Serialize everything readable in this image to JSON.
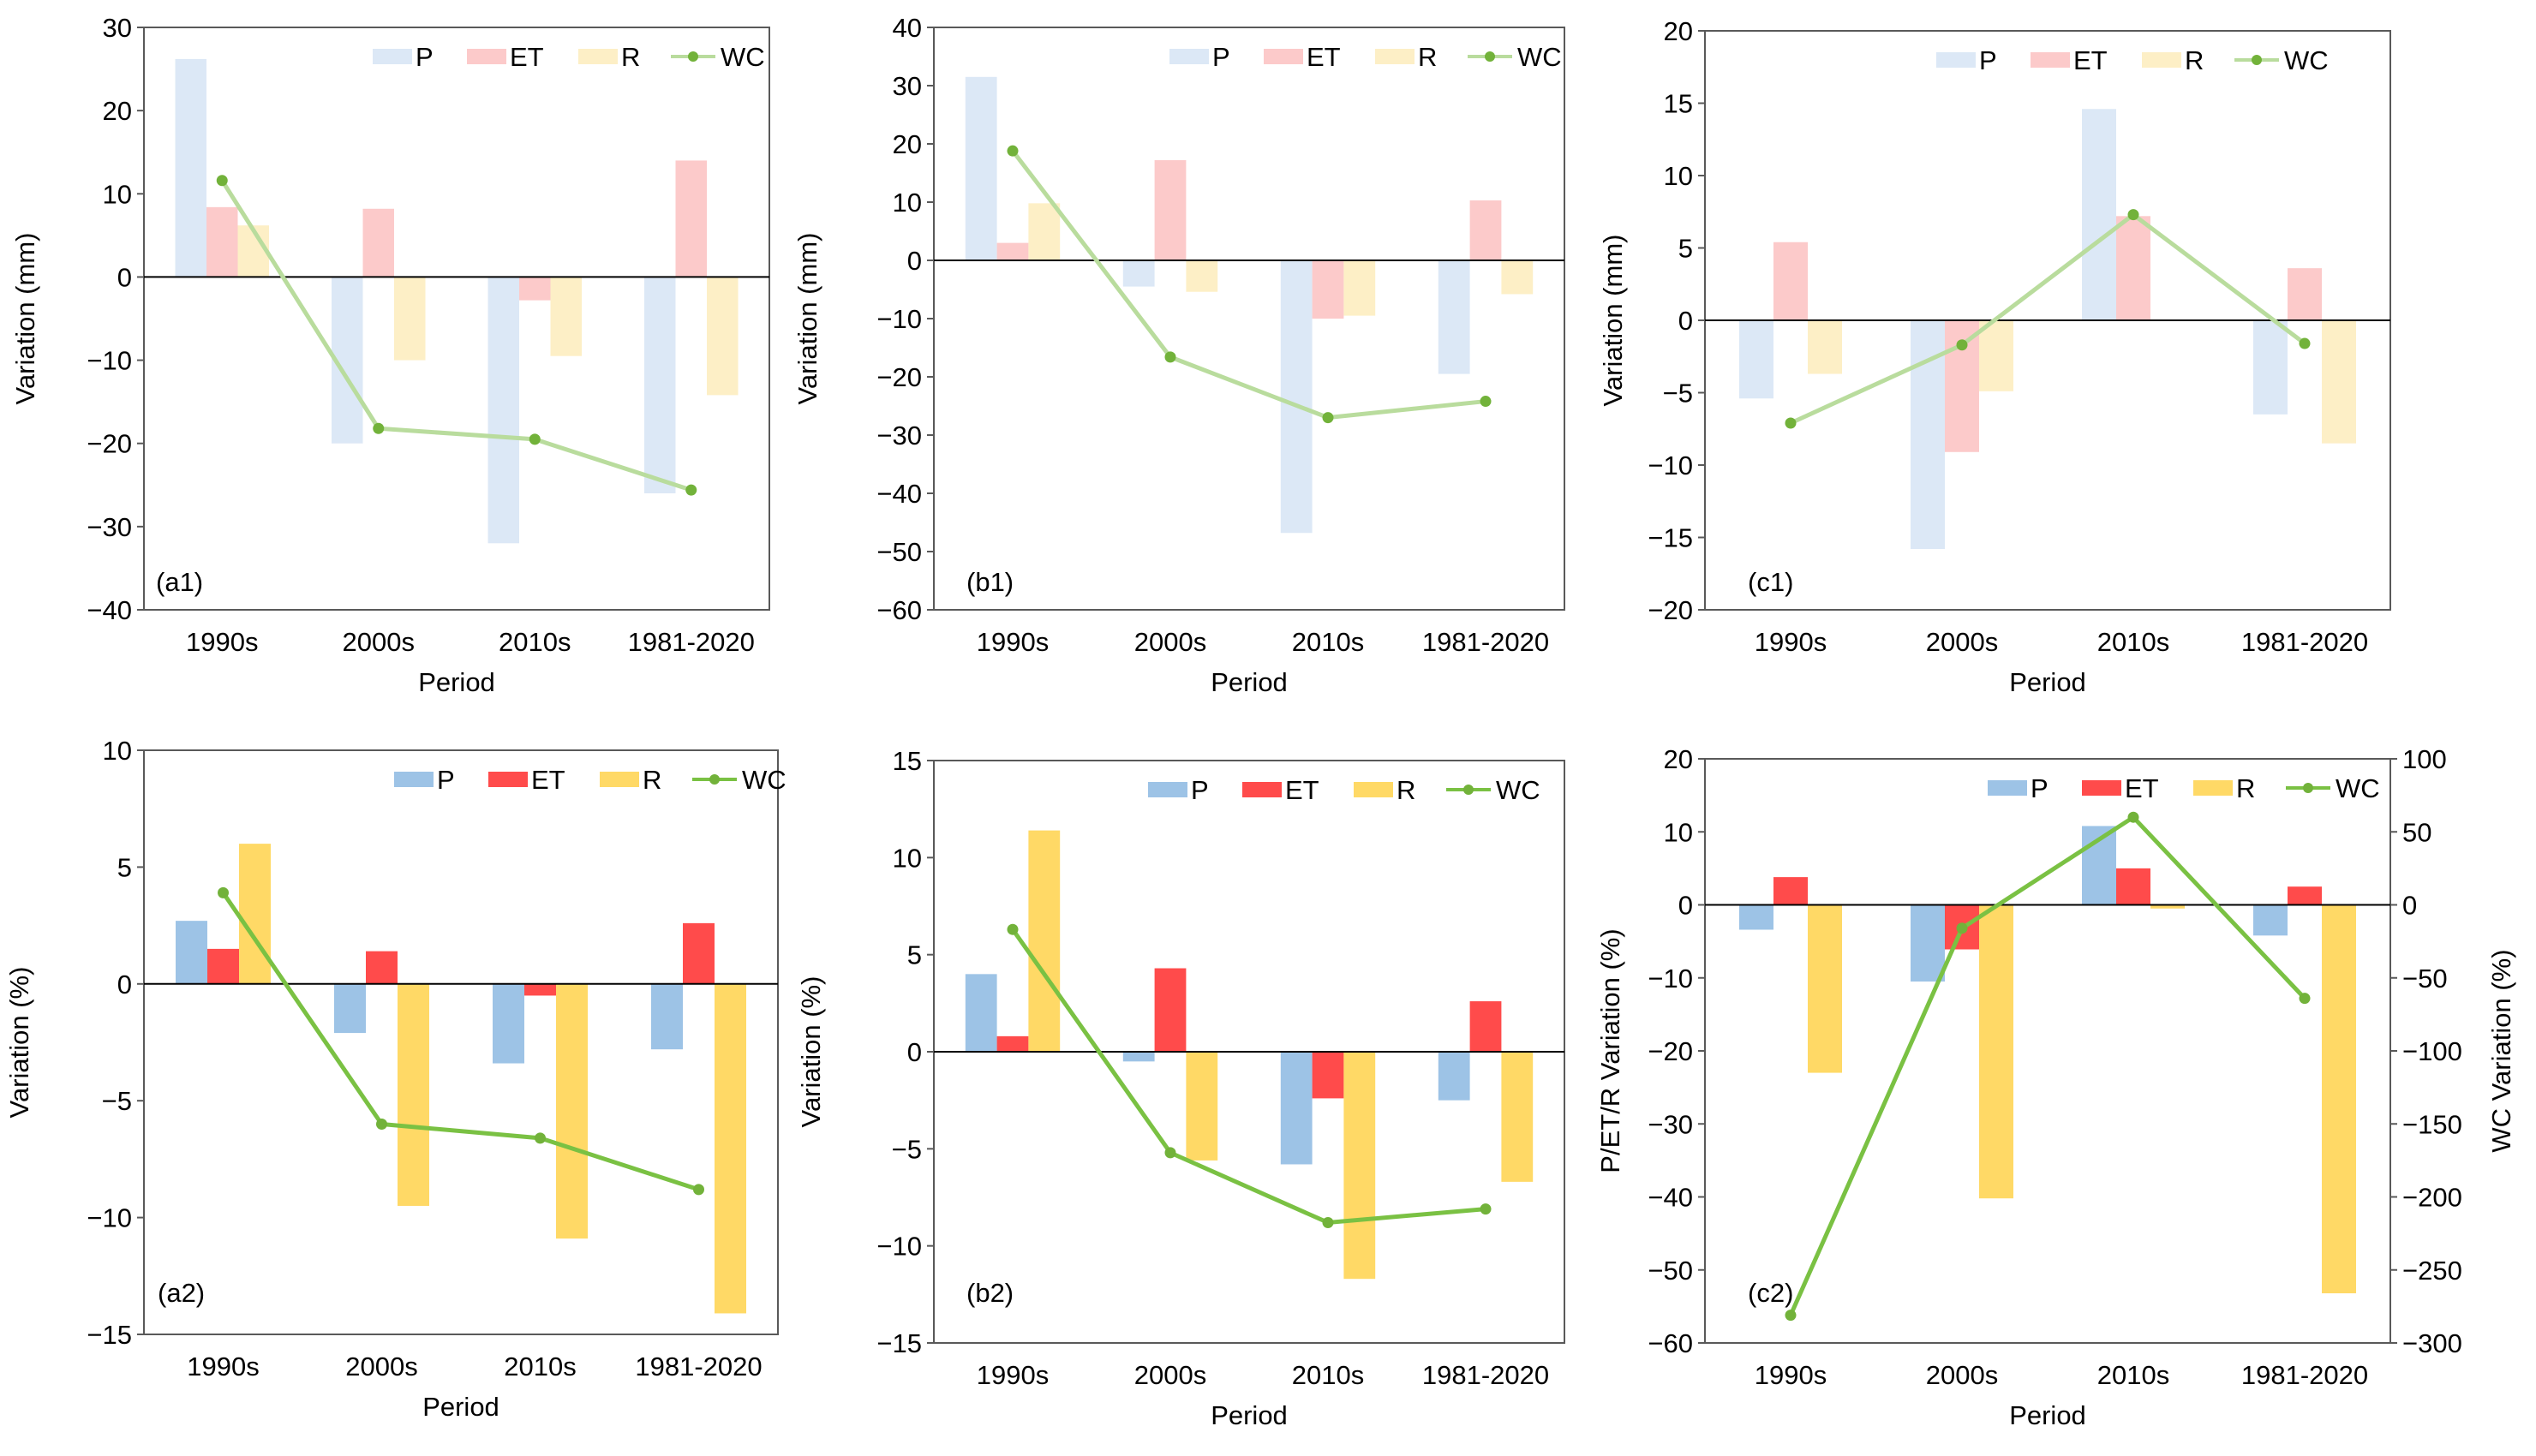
{
  "legend_items": [
    "P",
    "ET",
    "R",
    "WC"
  ],
  "chart_data": [
    {
      "id": "a1",
      "type": "bar",
      "panel_label": "(a1)",
      "categories": [
        "1990s",
        "2000s",
        "2010s",
        "1981-2020"
      ],
      "xlabel": "Period",
      "ylabel": "Variation  (mm)",
      "ylim": [
        -40,
        30
      ],
      "ticks": [
        -40,
        -30,
        -20,
        -10,
        0,
        10,
        20,
        30
      ],
      "colors": {
        "P": "#dce8f6",
        "ET": "#fccaca",
        "R": "#fdefc6",
        "WC": "#b9dc9d",
        "WC_marker": "#72b23a"
      },
      "series": [
        {
          "name": "P",
          "values": [
            26.2,
            -20.0,
            -32.0,
            -26.0
          ]
        },
        {
          "name": "ET",
          "values": [
            8.4,
            8.2,
            -2.8,
            14.0
          ]
        },
        {
          "name": "R",
          "values": [
            6.2,
            -10.0,
            -9.5,
            -14.2
          ]
        },
        {
          "name": "WC",
          "values": [
            11.6,
            -18.2,
            -19.5,
            -25.6
          ]
        }
      ]
    },
    {
      "id": "b1",
      "type": "bar",
      "panel_label": "(b1)",
      "categories": [
        "1990s",
        "2000s",
        "2010s",
        "1981-2020"
      ],
      "xlabel": "Period",
      "ylabel": "Variation (mm)",
      "ylim": [
        -60,
        40
      ],
      "ticks": [
        -60,
        -50,
        -40,
        -30,
        -20,
        -10,
        0,
        10,
        20,
        30,
        40
      ],
      "colors": {
        "P": "#dce8f6",
        "ET": "#fccaca",
        "R": "#fdefc6",
        "WC": "#b9dc9d",
        "WC_marker": "#72b23a"
      },
      "series": [
        {
          "name": "P",
          "values": [
            31.5,
            -4.5,
            -46.8,
            -19.5
          ]
        },
        {
          "name": "ET",
          "values": [
            3.0,
            17.2,
            -10.0,
            10.3
          ]
        },
        {
          "name": "R",
          "values": [
            9.8,
            -5.4,
            -9.5,
            -5.8
          ]
        },
        {
          "name": "WC",
          "values": [
            18.8,
            -16.6,
            -27.0,
            -24.2
          ]
        }
      ]
    },
    {
      "id": "c1",
      "type": "bar",
      "panel_label": "(c1)",
      "categories": [
        "1990s",
        "2000s",
        "2010s",
        "1981-2020"
      ],
      "xlabel": "Period",
      "ylabel": "Variation (mm)",
      "ylim": [
        -20,
        20
      ],
      "ticks": [
        -20,
        -15,
        -10,
        -5,
        0,
        5,
        10,
        15,
        20
      ],
      "colors": {
        "P": "#dce8f6",
        "ET": "#fccaca",
        "R": "#fdefc6",
        "WC": "#b9dc9d",
        "WC_marker": "#72b23a"
      },
      "series": [
        {
          "name": "P",
          "values": [
            -5.4,
            -15.8,
            14.6,
            -6.5
          ]
        },
        {
          "name": "ET",
          "values": [
            5.4,
            -9.1,
            7.2,
            3.6
          ]
        },
        {
          "name": "R",
          "values": [
            -3.7,
            -4.9,
            0,
            -8.5
          ]
        },
        {
          "name": "WC",
          "values": [
            -7.1,
            -1.7,
            7.3,
            -1.6
          ]
        }
      ]
    },
    {
      "id": "a2",
      "type": "bar",
      "panel_label": "(a2)",
      "categories": [
        "1990s",
        "2000s",
        "2010s",
        "1981-2020"
      ],
      "xlabel": "Period",
      "ylabel": "Variation (%)",
      "ylim": [
        -15,
        10
      ],
      "ticks": [
        -15,
        -10,
        -5,
        0,
        5,
        10
      ],
      "colors": {
        "P": "#9dc3e6",
        "ET": "#ff4b4b",
        "R": "#ffd966",
        "WC": "#7ac143",
        "WC_marker": "#72b23a"
      },
      "series": [
        {
          "name": "P",
          "values": [
            2.7,
            -2.1,
            -3.4,
            -2.8
          ]
        },
        {
          "name": "ET",
          "values": [
            1.5,
            1.4,
            -0.5,
            2.6
          ]
        },
        {
          "name": "R",
          "values": [
            6.0,
            -9.5,
            -10.9,
            -14.1
          ]
        },
        {
          "name": "WC",
          "values": [
            3.9,
            -6.0,
            -6.6,
            -8.8
          ]
        }
      ]
    },
    {
      "id": "b2",
      "type": "bar",
      "panel_label": "(b2)",
      "categories": [
        "1990s",
        "2000s",
        "2010s",
        "1981-2020"
      ],
      "xlabel": "Period",
      "ylabel": "Variation (%)",
      "ylim": [
        -15,
        15
      ],
      "ticks": [
        -15,
        -10,
        -5,
        0,
        5,
        10,
        15
      ],
      "colors": {
        "P": "#9dc3e6",
        "ET": "#ff4b4b",
        "R": "#ffd966",
        "WC": "#7ac143",
        "WC_marker": "#72b23a"
      },
      "series": [
        {
          "name": "P",
          "values": [
            4.0,
            -0.5,
            -5.8,
            -2.5
          ]
        },
        {
          "name": "ET",
          "values": [
            0.8,
            4.3,
            -2.4,
            2.6
          ]
        },
        {
          "name": "R",
          "values": [
            11.4,
            -5.6,
            -11.7,
            -6.7
          ]
        },
        {
          "name": "WC",
          "values": [
            6.3,
            -5.2,
            -8.8,
            -8.1
          ]
        }
      ]
    },
    {
      "id": "c2",
      "type": "bar",
      "panel_label": "(c2)",
      "categories": [
        "1990s",
        "2000s",
        "2010s",
        "1981-2020"
      ],
      "xlabel": "Period",
      "ylabel": "P/ET/R Variation (%)",
      "ylim": [
        -60,
        20
      ],
      "ticks": [
        -60,
        -50,
        -40,
        -30,
        -20,
        -10,
        0,
        10,
        20
      ],
      "y2label": "WC Variation (%)",
      "y2lim": [
        -300,
        100
      ],
      "y2ticks": [
        -300,
        -250,
        -200,
        -150,
        -100,
        -50,
        0,
        50,
        100
      ],
      "colors": {
        "P": "#9dc3e6",
        "ET": "#ff4b4b",
        "R": "#ffd966",
        "WC": "#7ac143",
        "WC_marker": "#72b23a"
      },
      "series": [
        {
          "name": "P",
          "values": [
            -3.4,
            -10.5,
            10.8,
            -4.2
          ]
        },
        {
          "name": "ET",
          "values": [
            3.8,
            -6.1,
            5.0,
            2.5
          ]
        },
        {
          "name": "R",
          "values": [
            -23.0,
            -40.2,
            -0.5,
            -53.2
          ]
        },
        {
          "name": "WC",
          "axis": "right",
          "values": [
            -281,
            -16,
            60,
            -64
          ]
        }
      ]
    }
  ]
}
